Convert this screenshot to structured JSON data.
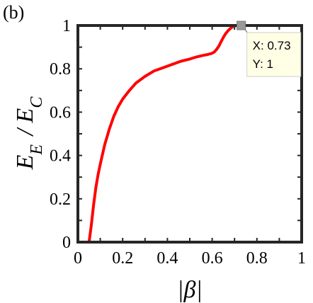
{
  "panel_label": "(b)",
  "chart_data": {
    "type": "line",
    "xlabel": "|β|",
    "ylabel": "E_E / E_C",
    "xlim": [
      0,
      1
    ],
    "ylim": [
      0,
      1
    ],
    "x_ticks": [
      "0",
      "0.2",
      "0.4",
      "0.6",
      "0.8",
      "1"
    ],
    "y_ticks": [
      "0",
      "0.2",
      "0.4",
      "0.6",
      "0.8",
      "1"
    ],
    "grid": false,
    "series": [
      {
        "color": "#ff0000",
        "x": [
          0,
          0.03,
          0.05,
          0.06,
          0.07,
          0.08,
          0.09,
          0.1,
          0.12,
          0.14,
          0.16,
          0.18,
          0.2,
          0.23,
          0.26,
          0.3,
          0.34,
          0.38,
          0.42,
          0.46,
          0.5,
          0.53,
          0.56,
          0.58,
          0.6,
          0.61,
          0.62,
          0.63,
          0.64,
          0.65,
          0.66,
          0.67,
          0.68,
          0.69,
          0.7,
          0.71,
          0.72,
          0.73,
          0.8,
          0.9,
          1.0
        ],
        "y": [
          0,
          0,
          0,
          0.08,
          0.17,
          0.25,
          0.31,
          0.36,
          0.45,
          0.52,
          0.58,
          0.625,
          0.66,
          0.7,
          0.735,
          0.765,
          0.79,
          0.805,
          0.82,
          0.835,
          0.845,
          0.855,
          0.862,
          0.866,
          0.872,
          0.878,
          0.89,
          0.905,
          0.925,
          0.945,
          0.962,
          0.975,
          0.985,
          0.993,
          0.998,
          1,
          1,
          1,
          1,
          1,
          1
        ]
      }
    ],
    "datatip": {
      "x": 0.73,
      "y": 1,
      "x_text": "X: 0.73",
      "y_text": "Y: 1"
    }
  }
}
